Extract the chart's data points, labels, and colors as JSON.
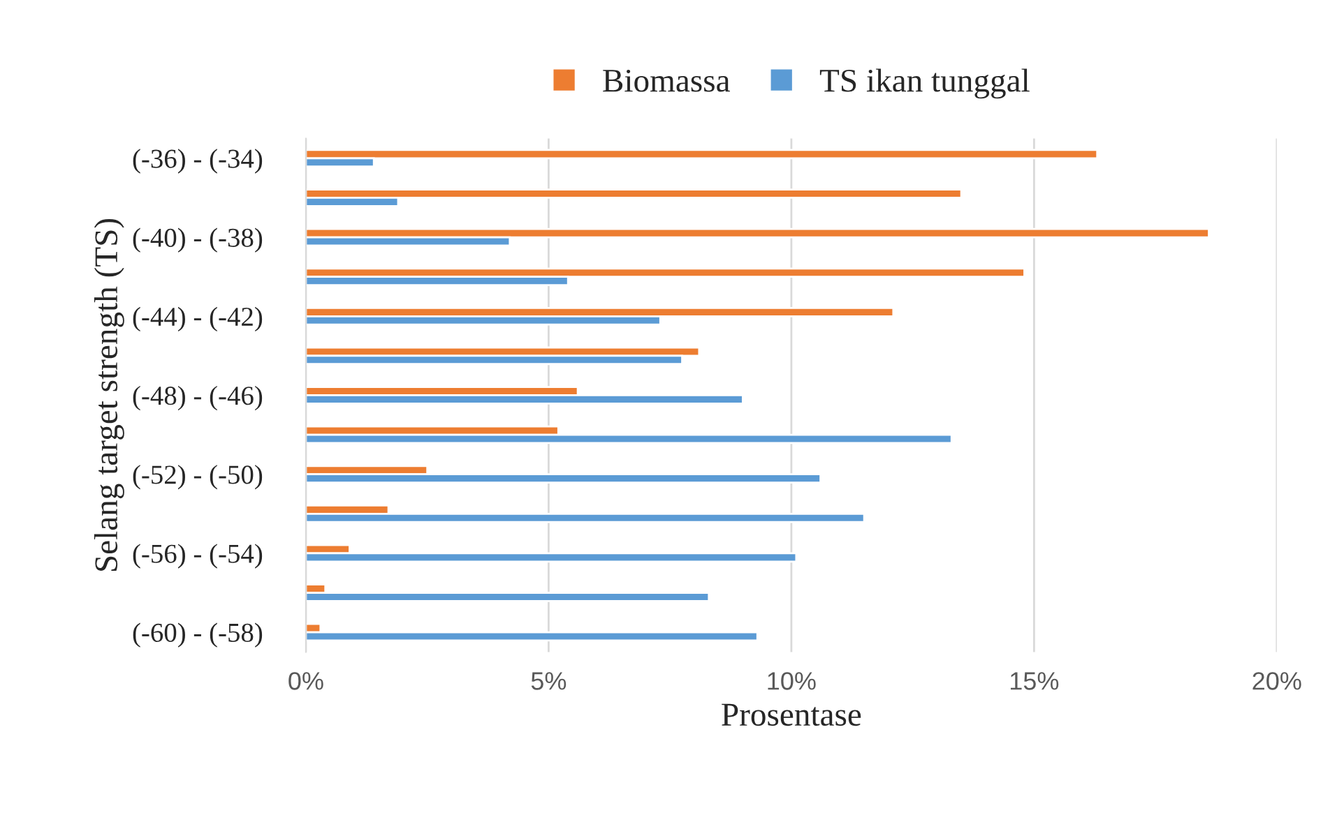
{
  "chart_data": {
    "type": "bar",
    "orientation": "horizontal",
    "categories": [
      "(-36) - (-34)",
      null,
      "(-40) - (-38)",
      null,
      "(-44) - (-42)",
      null,
      "(-48) - (-46)",
      null,
      "(-52) - (-50)",
      null,
      "(-56) - (-54)",
      null,
      "(-60) - (-58)"
    ],
    "series": [
      {
        "name": "Biomassa",
        "color": "#ed7d31",
        "values": [
          16.3,
          13.5,
          18.6,
          14.8,
          12.1,
          8.1,
          5.6,
          5.2,
          2.5,
          1.7,
          0.9,
          0.4,
          0.3
        ]
      },
      {
        "name": "TS ikan tunggal",
        "color": "#5b9bd5",
        "values": [
          1.4,
          1.9,
          4.2,
          5.4,
          7.3,
          7.75,
          9.0,
          13.3,
          10.6,
          11.5,
          10.1,
          8.3,
          9.3
        ]
      }
    ],
    "xlabel": "Prosentase",
    "ylabel": "Selang target strength (TS)",
    "xlim": [
      0,
      20
    ],
    "xticks": [
      {
        "value": 0,
        "label": "0%"
      },
      {
        "value": 5,
        "label": "5%"
      },
      {
        "value": 10,
        "label": "10%"
      },
      {
        "value": 15,
        "label": "15%"
      },
      {
        "value": 20,
        "label": "20%"
      }
    ],
    "grid": "x",
    "legend": "top"
  }
}
